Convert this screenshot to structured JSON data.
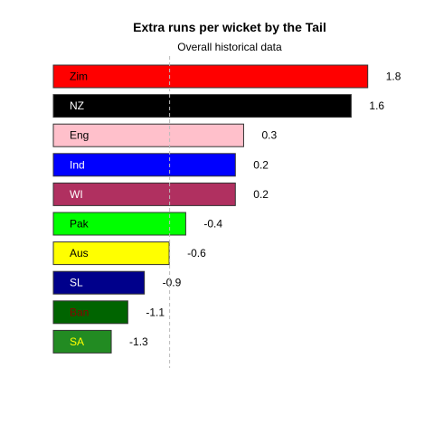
{
  "chart_data": {
    "type": "bar",
    "orientation": "horizontal",
    "title": "Extra runs per wicket by the Tail",
    "subtitle": "Overall historical data",
    "xlabel": "",
    "ylabel": "",
    "grid": false,
    "reference_line": "dashed vertical line at -0.6",
    "categories": [
      "Zim",
      "NZ",
      "Eng",
      "Ind",
      "WI",
      "Pak",
      "Aus",
      "SL",
      "Ban",
      "SA"
    ],
    "values": [
      1.8,
      1.6,
      0.3,
      0.2,
      0.2,
      -0.4,
      -0.6,
      -0.9,
      -1.1,
      -1.3
    ],
    "value_labels": [
      "1.8",
      "1.6",
      "0.3",
      "0.2",
      "0.2",
      "-0.4",
      "-0.6",
      "-0.9",
      "-1.1",
      "-1.3"
    ],
    "bar_colors": [
      "#ff0000",
      "#000000",
      "#ffc0cb",
      "#0000ff",
      "#b03060",
      "#00ff00",
      "#ffff00",
      "#00008b",
      "#006400",
      "#228b22"
    ],
    "label_colors": [
      "#000000",
      "#ffffff",
      "#000000",
      "#ffffff",
      "#ffffff",
      "#000000",
      "#000000",
      "#ffffff",
      "#8b0000",
      "#ffff00"
    ],
    "xlim": [
      -2.0,
      1.8
    ]
  }
}
